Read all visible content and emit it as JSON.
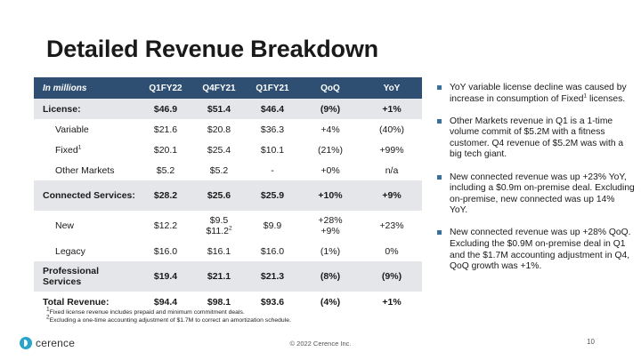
{
  "title": "Detailed Revenue Breakdown",
  "table": {
    "headers": [
      "In millions",
      "Q1FY22",
      "Q4FY21",
      "Q1FY21",
      "QoQ",
      "YoY"
    ],
    "rows": [
      {
        "label": "License:",
        "q1fy22": "$46.9",
        "q4fy21": "$51.4",
        "q1fy21": "$46.4",
        "qoq": "(9%)",
        "yoy": "+1%"
      },
      {
        "label": "Variable",
        "q1fy22": "$21.6",
        "q4fy21": "$20.8",
        "q1fy21": "$36.3",
        "qoq": "+4%",
        "yoy": "(40%)"
      },
      {
        "label": "Fixed",
        "label_sup": "1",
        "q1fy22": "$20.1",
        "q4fy21": "$25.4",
        "q1fy21": "$10.1",
        "qoq": "(21%)",
        "yoy": "+99%"
      },
      {
        "label": "Other Markets",
        "q1fy22": "$5.2",
        "q4fy21": "$5.2",
        "q1fy21": "-",
        "qoq": "+0%",
        "yoy": "n/a"
      },
      {
        "label": "Connected Services:",
        "q1fy22": "$28.2",
        "q4fy21": "$25.6",
        "q1fy21": "$25.9",
        "qoq": "+10%",
        "yoy": "+9%"
      },
      {
        "label": "New",
        "q1fy22": "$12.2",
        "q4fy21_line1": "$9.5",
        "q4fy21_line2": "$11.2",
        "q4fy21_sup": "2",
        "q1fy21": "$9.9",
        "qoq_line1": "+28%",
        "qoq_line2": "+9%",
        "yoy": "+23%"
      },
      {
        "label": "Legacy",
        "q1fy22": "$16.0",
        "q4fy21": "$16.1",
        "q1fy21": "$16.0",
        "qoq": "(1%)",
        "yoy": "0%"
      },
      {
        "label": "Professional Services",
        "q1fy22": "$19.4",
        "q4fy21": "$21.1",
        "q1fy21": "$21.3",
        "qoq": "(8%)",
        "yoy": "(9%)"
      },
      {
        "label": "Total Revenue:",
        "q1fy22": "$94.4",
        "q4fy21": "$98.1",
        "q1fy21": "$93.6",
        "qoq": "(4%)",
        "yoy": "+1%"
      }
    ]
  },
  "footnotes": {
    "fn1_mark": "1",
    "fn1_text": "Fixed license revenue includes prepaid and minimum commitment deals.",
    "fn2_mark": "2",
    "fn2_text": "Excluding a one-time accounting adjustment of $1.7M to correct an amortization schedule."
  },
  "bullets": [
    {
      "pre": "YoY variable license decline was caused by increase in consumption of Fixed",
      "sup": "1",
      "post": " licenses."
    },
    {
      "pre": "Other Markets revenue in Q1 is a 1-time volume commit of $5.2M with a fitness customer.  Q4 revenue of $5.2M was with a big tech giant.",
      "sup": "",
      "post": ""
    },
    {
      "pre": "New connected revenue was up +23% YoY, including a $0.9m on-premise deal. Excluding on-premise, new connected was up 14% YoY.",
      "sup": "",
      "post": ""
    },
    {
      "pre": "New connected revenue was up +28% QoQ. Excluding the $0.9M on-premise deal in Q1 and the $1.7M accounting adjustment in Q4, QoQ growth was +1%.",
      "sup": "",
      "post": ""
    }
  ],
  "footer": {
    "copyright": "© 2022 Cerence Inc.",
    "page_number": "10",
    "logo_text": "cerence"
  },
  "colors": {
    "header_bg": "#2e4f72",
    "row_shade": "#e4e6ea",
    "bullet": "#3a6f9a",
    "logo": "#2aa4c8"
  }
}
